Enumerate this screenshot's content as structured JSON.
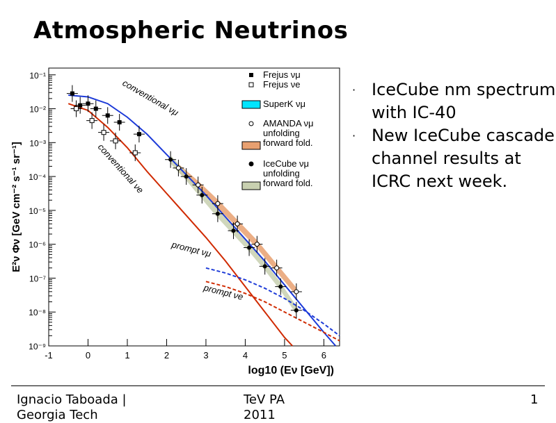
{
  "slide": {
    "title": "Atmospheric Neutrinos",
    "bullets": [
      "IceCube nm spectrum with IC-40",
      "New IceCube cascade channel results at ICRC next week."
    ],
    "footer": {
      "left": "Ignacio Taboada |\nGeorgia Tech",
      "center": "TeV PA\n2011",
      "page": "1"
    }
  },
  "chart_data": {
    "type": "line",
    "xlabel": "log10 (Eν [GeV])",
    "ylabel": "E²ν Φν [GeV cm⁻² s⁻¹ sr⁻¹]",
    "xlim": [
      -1,
      6.4
    ],
    "ylim_log10": [
      -9,
      -0.8
    ],
    "x_ticks": [
      "-1",
      "0",
      "1",
      "2",
      "3",
      "4",
      "5",
      "6"
    ],
    "y_ticks": [
      "10⁻¹",
      "10⁻²",
      "10⁻³",
      "10⁻⁴",
      "10⁻⁵",
      "10⁻⁶",
      "10⁻⁷",
      "10⁻⁸",
      "10⁻⁹"
    ],
    "annotations": [
      "conventional νμ",
      "conventional νe",
      "prompt νμ",
      "prompt νe"
    ],
    "legend": [
      {
        "label": "Frejus νμ",
        "marker": "filled-square"
      },
      {
        "label": "Frejus νe",
        "marker": "open-square"
      },
      {
        "label": "SuperK νμ",
        "marker": "band",
        "color": "#00e5ff"
      },
      {
        "label": "AMANDA νμ unfolding forward fold.",
        "marker": "open-circle+band",
        "color": "#e8a070"
      },
      {
        "label": "IceCube νμ unfolding forward fold.",
        "marker": "filled-circle+band",
        "color": "#c8d0b0"
      }
    ],
    "series": [
      {
        "name": "conventional νμ",
        "color": "#1c3ad8",
        "x": [
          -0.5,
          0,
          0.5,
          1,
          1.5,
          2,
          2.5,
          3,
          3.5,
          4,
          4.5,
          5,
          5.5,
          6,
          6.3
        ],
        "y_log10": [
          -1.6,
          -1.65,
          -1.85,
          -2.25,
          -2.75,
          -3.35,
          -3.95,
          -4.55,
          -5.2,
          -5.85,
          -6.5,
          -7.2,
          -7.9,
          -8.6,
          -9.0
        ]
      },
      {
        "name": "conventional νe",
        "color": "#d02a00",
        "x": [
          -0.5,
          0,
          0.5,
          1,
          1.5,
          2,
          2.5,
          3,
          3.5,
          4,
          4.5,
          5,
          5.2
        ],
        "y_log10": [
          -1.85,
          -2.05,
          -2.55,
          -3.15,
          -3.85,
          -4.5,
          -5.15,
          -5.8,
          -6.5,
          -7.25,
          -8.0,
          -8.75,
          -9.0
        ]
      },
      {
        "name": "prompt νμ",
        "color": "#1c3ad8",
        "dashed": true,
        "x": [
          3,
          3.5,
          4,
          4.5,
          5,
          5.5,
          6,
          6.4
        ],
        "y_log10": [
          -6.7,
          -6.85,
          -7.05,
          -7.3,
          -7.6,
          -7.95,
          -8.35,
          -8.7
        ]
      },
      {
        "name": "prompt νe",
        "color": "#d02a00",
        "dashed": true,
        "x": [
          3,
          3.5,
          4,
          4.5,
          5,
          5.5,
          6,
          6.4
        ],
        "y_log10": [
          -7.1,
          -7.25,
          -7.45,
          -7.7,
          -8.0,
          -8.3,
          -8.6,
          -8.85
        ]
      },
      {
        "name": "Frejus νμ",
        "marker": "filled-square",
        "x": [
          -0.4,
          -0.2,
          0,
          0.2,
          0.5,
          0.8,
          1.3
        ],
        "y_log10": [
          -1.55,
          -1.9,
          -1.85,
          -2.0,
          -2.2,
          -2.4,
          -2.75
        ]
      },
      {
        "name": "Frejus νe",
        "marker": "open-square",
        "x": [
          -0.3,
          0.1,
          0.4,
          0.7,
          1.2
        ],
        "y_log10": [
          -2.0,
          -2.35,
          -2.7,
          -2.95,
          -3.3
        ]
      },
      {
        "name": "AMANDA νμ",
        "marker": "open-circle",
        "x": [
          2.3,
          2.8,
          3.3,
          3.8,
          4.3,
          4.8,
          5.3
        ],
        "y_log10": [
          -3.75,
          -4.25,
          -4.8,
          -5.4,
          -6.0,
          -6.7,
          -7.4
        ]
      },
      {
        "name": "IceCube νμ",
        "marker": "filled-circle",
        "x": [
          2.1,
          2.5,
          2.9,
          3.3,
          3.7,
          4.1,
          4.5,
          4.9,
          5.3
        ],
        "y_log10": [
          -3.5,
          -4.0,
          -4.55,
          -5.1,
          -5.6,
          -6.1,
          -6.65,
          -7.25,
          -7.95
        ]
      }
    ]
  }
}
